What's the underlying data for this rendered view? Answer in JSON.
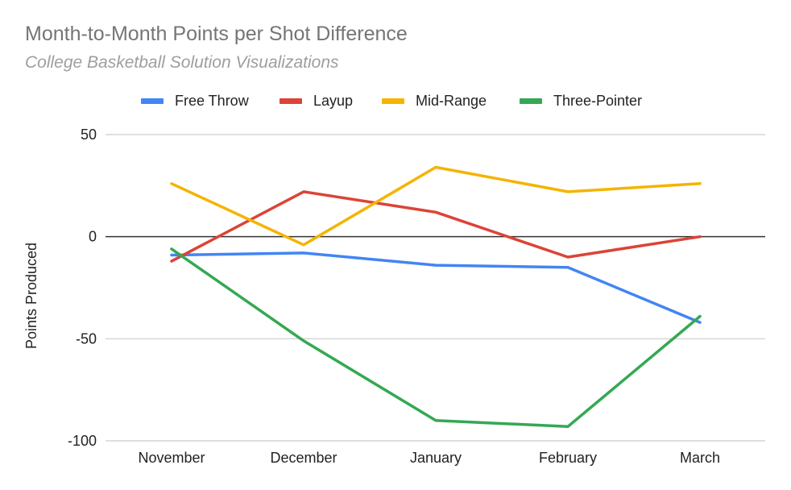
{
  "title": "Month-to-Month Points per Shot Difference",
  "subtitle": "College Basketball Solution Visualizations",
  "chart_data": {
    "type": "line",
    "title": "Month-to-Month Points per Shot Difference",
    "subtitle": "College Basketball Solution Visualizations",
    "xlabel": "",
    "ylabel": "Points Produced",
    "categories": [
      "November",
      "December",
      "January",
      "February",
      "March"
    ],
    "ylim": [
      -100,
      50
    ],
    "yticks": [
      "50",
      "0",
      "-50",
      "-100"
    ],
    "ytick_values": [
      50,
      0,
      -50,
      -100
    ],
    "grid": true,
    "legend_position": "top",
    "series": [
      {
        "name": "Free Throw",
        "color": "#4285f4",
        "values": [
          -9,
          -8,
          -14,
          -15,
          -42
        ]
      },
      {
        "name": "Layup",
        "color": "#db4437",
        "values": [
          -12,
          22,
          12,
          -10,
          0
        ]
      },
      {
        "name": "Mid-Range",
        "color": "#f4b400",
        "values": [
          26,
          -4,
          34,
          22,
          26
        ]
      },
      {
        "name": "Three-Pointer",
        "color": "#34a853",
        "values": [
          -6,
          -51,
          -90,
          -93,
          -39
        ]
      }
    ]
  }
}
